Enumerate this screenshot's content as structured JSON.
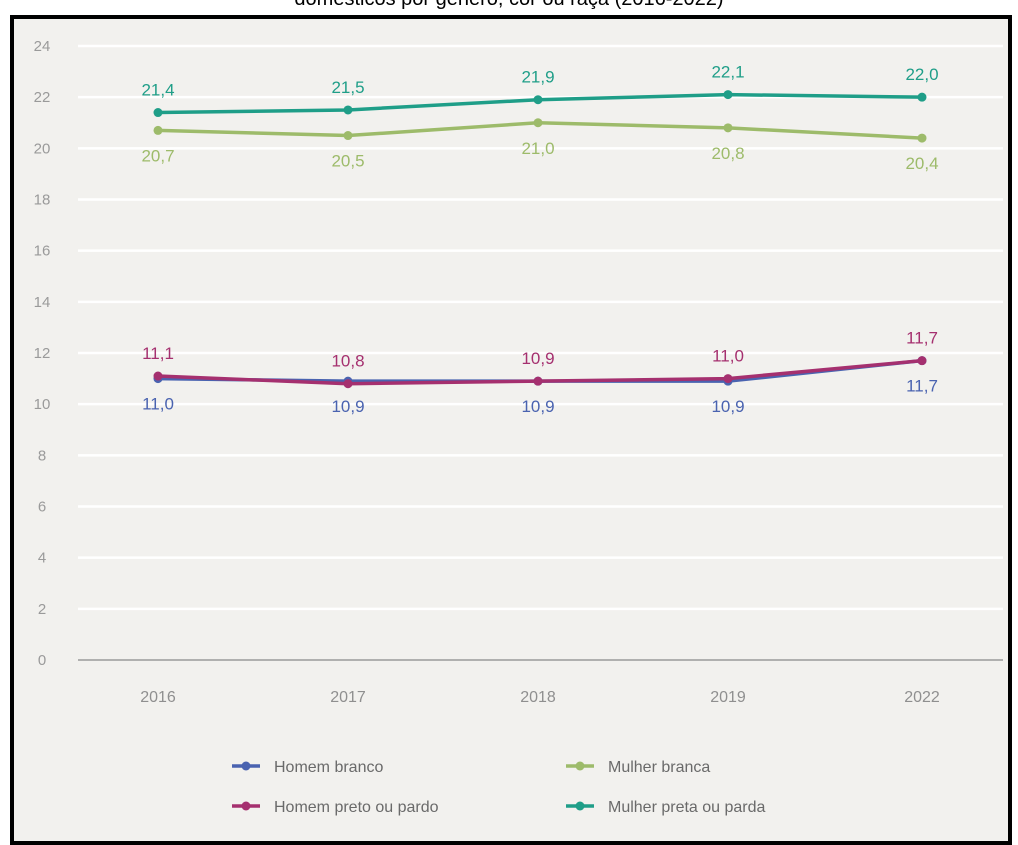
{
  "chart_data": {
    "type": "line",
    "title": "domésticos por gênero, cor ou raça (2016-2022)",
    "x": [
      "2016",
      "2017",
      "2018",
      "2019",
      "2022"
    ],
    "ylim": [
      0,
      24
    ],
    "yticks": [
      "0",
      "2",
      "4",
      "6",
      "8",
      "10",
      "12",
      "14",
      "16",
      "18",
      "20",
      "22",
      "24"
    ],
    "grid": true,
    "legend_position": "bottom",
    "series": [
      {
        "name": "Homem branco",
        "color": "#4a63b0",
        "values": [
          11.0,
          10.9,
          10.9,
          10.9,
          11.7
        ],
        "labels": [
          "11,0",
          "10,9",
          "10,9",
          "10,9",
          "11,7"
        ],
        "label_side": "below"
      },
      {
        "name": "Homem preto ou pardo",
        "color": "#a5306f",
        "values": [
          11.1,
          10.8,
          10.9,
          11.0,
          11.7
        ],
        "labels": [
          "11,1",
          "10,8",
          "10,9",
          "11,0",
          "11,7"
        ],
        "label_side": "above"
      },
      {
        "name": "Mulher branca",
        "color": "#9dbb6a",
        "values": [
          20.7,
          20.5,
          21.0,
          20.8,
          20.4
        ],
        "labels": [
          "20,7",
          "20,5",
          "21,0",
          "20,8",
          "20,4"
        ],
        "label_side": "below"
      },
      {
        "name": "Mulher preta ou parda",
        "color": "#1f9e88",
        "values": [
          21.4,
          21.5,
          21.9,
          22.1,
          22.0
        ],
        "labels": [
          "21,4",
          "21,5",
          "21,9",
          "22,1",
          "22,0"
        ],
        "label_side": "above"
      }
    ]
  }
}
